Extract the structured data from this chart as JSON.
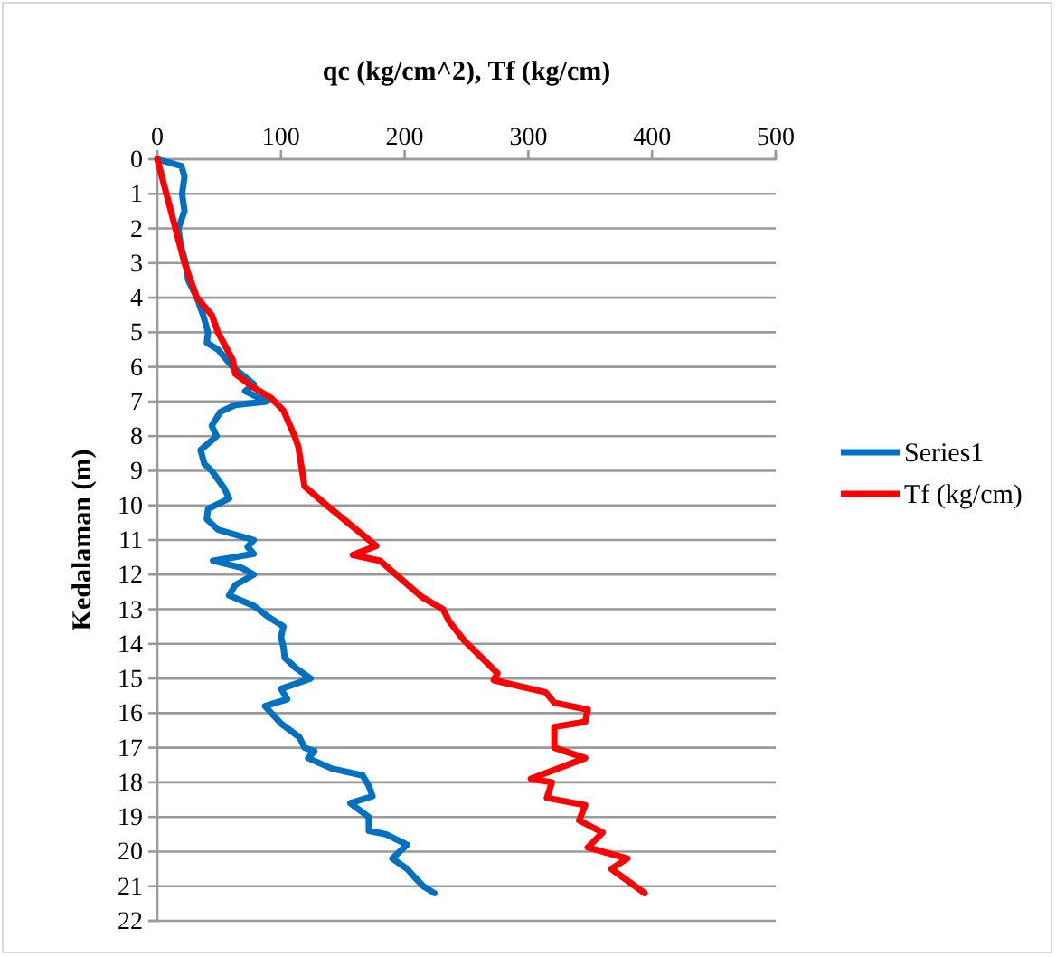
{
  "chart_data": {
    "type": "line",
    "xlabel": "qc (kg/cm^2), Tf (kg/cm)",
    "ylabel": "Kedalaman (m)",
    "xlim": [
      0,
      500
    ],
    "xticks": [
      0,
      100,
      200,
      300,
      400,
      500
    ],
    "ylim": [
      22,
      0
    ],
    "yticks": [
      0,
      1,
      2,
      3,
      4,
      5,
      6,
      7,
      8,
      9,
      10,
      11,
      12,
      13,
      14,
      15,
      16,
      17,
      18,
      19,
      20,
      21,
      22
    ],
    "grid": "y",
    "legend": "right",
    "line_style": "solid",
    "marker": "none",
    "series": [
      {
        "name": "Series1",
        "color": "#0070c0",
        "x": [
          0,
          19.5,
          22,
          20,
          22,
          17,
          19,
          23,
          25,
          32,
          37,
          41,
          40,
          49,
          61,
          78,
          71,
          88,
          63,
          51,
          44,
          48,
          35,
          38,
          44,
          54,
          58,
          41,
          40,
          49,
          78,
          73,
          78,
          45,
          68,
          78,
          63,
          58,
          78,
          89,
          102,
          100,
          102,
          103,
          112,
          124,
          100,
          105,
          87,
          100,
          115,
          119,
          127,
          122,
          141,
          166,
          171,
          174,
          156,
          171,
          171,
          185,
          202,
          190,
          202,
          207,
          215,
          224
        ],
        "values": [
          0,
          0.2,
          0.5,
          1,
          1.5,
          2,
          2.5,
          3,
          3.5,
          4,
          4.5,
          5,
          5.3,
          5.5,
          6,
          6.5,
          6.7,
          7,
          7.1,
          7.3,
          7.7,
          8,
          8.4,
          8.8,
          9,
          9.5,
          9.8,
          10.1,
          10.4,
          10.7,
          11,
          11.2,
          11.4,
          11.6,
          11.8,
          12,
          12.3,
          12.6,
          12.9,
          13.2,
          13.5,
          13.8,
          14.1,
          14.4,
          14.7,
          15,
          15.3,
          15.6,
          15.8,
          16.3,
          16.7,
          17,
          17.1,
          17.3,
          17.6,
          17.8,
          18.1,
          18.4,
          18.6,
          19,
          19.4,
          19.5,
          19.8,
          20.2,
          20.5,
          20.7,
          21,
          21.2
        ]
      },
      {
        "name": "Tf (kg/cm)",
        "color": "#ff0000",
        "x": [
          0,
          22,
          32,
          44,
          49,
          61,
          63,
          78,
          92,
          102,
          111,
          114,
          119,
          137,
          177,
          158,
          180,
          214,
          231,
          236,
          248,
          275,
          272,
          314,
          321,
          348,
          346,
          321,
          321,
          346,
          302,
          319,
          315,
          346,
          341,
          360,
          348,
          380,
          367,
          394
        ],
        "values": [
          0,
          3,
          4,
          4.5,
          5,
          5.8,
          6.2,
          6.6,
          6.9,
          7.26,
          8,
          8.3,
          9.45,
          10,
          11.17,
          11.43,
          11.6,
          12.65,
          13,
          13.35,
          13.9,
          14.85,
          15.05,
          15.4,
          15.7,
          15.9,
          16.25,
          16.4,
          17,
          17.3,
          17.9,
          18,
          18.45,
          18.66,
          19.1,
          19.45,
          19.88,
          20.2,
          20.5,
          21.2
        ]
      }
    ]
  }
}
